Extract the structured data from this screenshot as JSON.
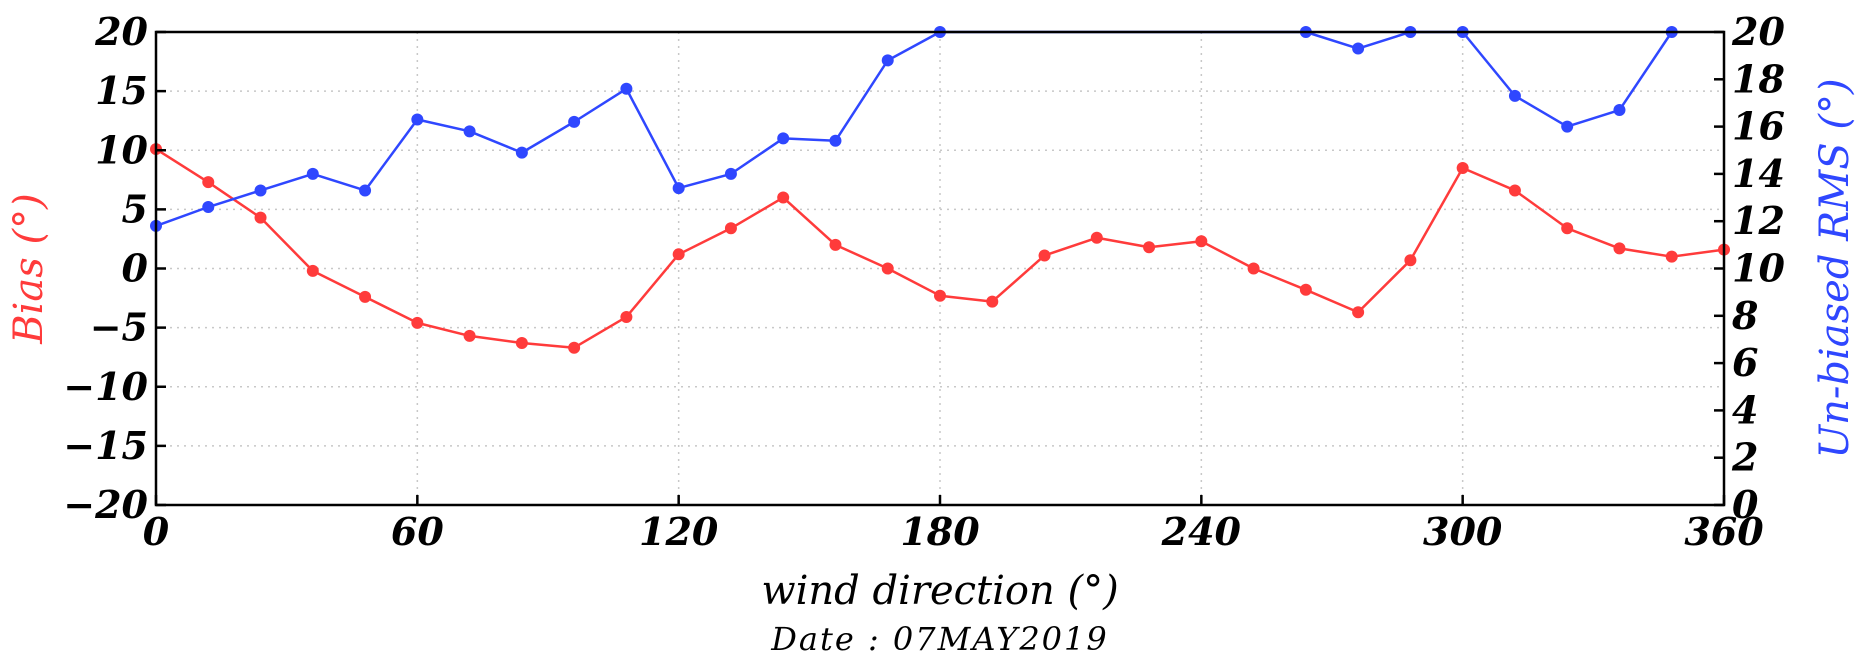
{
  "chart_data": {
    "type": "line",
    "xlabel": "wind direction (°)",
    "ylabel_left": "Bias (°)",
    "ylabel_right": "Un-biased RMS (°)",
    "footer": "Date : 07MAY2019",
    "xlim": [
      0,
      360
    ],
    "ylim_left": [
      -20,
      20
    ],
    "ylim_right": [
      0,
      20
    ],
    "x_ticks": [
      0,
      60,
      120,
      180,
      240,
      300,
      360
    ],
    "y_ticks_left": [
      -20,
      -15,
      -10,
      -5,
      0,
      5,
      10,
      15,
      20
    ],
    "y_ticks_right": [
      0,
      2,
      4,
      6,
      8,
      10,
      12,
      14,
      16,
      18,
      20
    ],
    "grid": true,
    "series": [
      {
        "axis": "left",
        "color": "#ff3b3b",
        "x": [
          0,
          12,
          24,
          36,
          48,
          60,
          72,
          84,
          96,
          108,
          120,
          132,
          144,
          156,
          168,
          180,
          192,
          204,
          216,
          228,
          240,
          252,
          264,
          276,
          288,
          300,
          312,
          324,
          336,
          348,
          360
        ],
        "values": [
          10.1,
          7.3,
          4.3,
          -0.2,
          -2.4,
          -4.6,
          -5.7,
          -6.3,
          -6.7,
          -4.1,
          1.2,
          3.4,
          6.0,
          2.0,
          0.0,
          -2.3,
          -2.8,
          1.1,
          2.6,
          1.8,
          2.3,
          0.0,
          -1.8,
          -3.7,
          0.7,
          8.5,
          6.6,
          3.4,
          1.7,
          1.0,
          1.6
        ]
      },
      {
        "axis": "right",
        "color": "#2f47ff",
        "x": [
          0,
          12,
          24,
          36,
          48,
          60,
          72,
          84,
          96,
          108,
          120,
          132,
          144,
          156,
          168,
          180,
          264,
          276,
          288,
          300,
          312,
          324,
          336,
          348
        ],
        "values": [
          11.8,
          12.6,
          13.3,
          14.0,
          13.3,
          16.3,
          15.8,
          14.9,
          16.2,
          17.6,
          13.4,
          14.0,
          15.5,
          15.4,
          18.8,
          20.0,
          20.0,
          19.3,
          20.0,
          20.0,
          17.3,
          16.0,
          16.7,
          20.0
        ]
      }
    ]
  }
}
